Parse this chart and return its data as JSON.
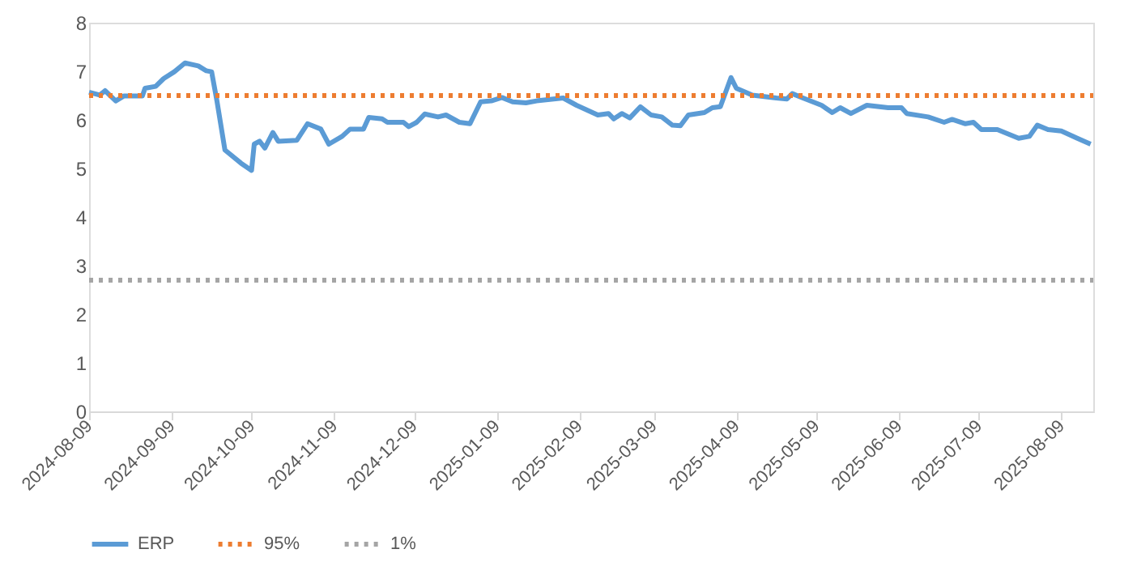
{
  "chart_data": {
    "type": "line",
    "xlim": [
      "2024-08-09",
      "2025-08-21"
    ],
    "xticks": [
      "2024-08-09",
      "2024-09-09",
      "2024-10-09",
      "2024-11-09",
      "2024-12-09",
      "2025-01-09",
      "2025-02-09",
      "2025-03-09",
      "2025-04-09",
      "2025-05-09",
      "2025-06-09",
      "2025-07-09",
      "2025-08-09"
    ],
    "ylim": [
      0,
      8
    ],
    "yticks": [
      0,
      1,
      2,
      3,
      4,
      5,
      6,
      7,
      8
    ],
    "grid": false,
    "legend": "bottom",
    "marker": "none",
    "series": [
      {
        "name": "ERP",
        "color": "#5b9bd5",
        "line_style": "solid",
        "x": [
          "2024-08-09",
          "2024-08-13",
          "2024-08-15",
          "2024-08-19",
          "2024-08-22",
          "2024-08-29",
          "2024-08-30",
          "2024-09-03",
          "2024-09-06",
          "2024-09-10",
          "2024-09-14",
          "2024-09-19",
          "2024-09-22",
          "2024-09-24",
          "2024-09-26",
          "2024-09-29",
          "2024-10-05",
          "2024-10-09",
          "2024-10-10",
          "2024-10-12",
          "2024-10-14",
          "2024-10-17",
          "2024-10-19",
          "2024-10-26",
          "2024-10-30",
          "2024-11-04",
          "2024-11-07",
          "2024-11-12",
          "2024-11-15",
          "2024-11-20",
          "2024-11-22",
          "2024-11-27",
          "2024-11-29",
          "2024-12-05",
          "2024-12-07",
          "2024-12-10",
          "2024-12-13",
          "2024-12-18",
          "2024-12-21",
          "2024-12-26",
          "2024-12-30",
          "2025-01-03",
          "2025-01-07",
          "2025-01-11",
          "2025-01-15",
          "2025-01-20",
          "2025-01-24",
          "2025-02-03",
          "2025-02-08",
          "2025-02-16",
          "2025-02-20",
          "2025-02-22",
          "2025-02-25",
          "2025-02-28",
          "2025-03-04",
          "2025-03-08",
          "2025-03-12",
          "2025-03-16",
          "2025-03-19",
          "2025-03-22",
          "2025-03-28",
          "2025-03-31",
          "2025-04-03",
          "2025-04-07",
          "2025-04-09",
          "2025-04-15",
          "2025-04-24",
          "2025-04-28",
          "2025-04-30",
          "2025-05-04",
          "2025-05-11",
          "2025-05-15",
          "2025-05-18",
          "2025-05-22",
          "2025-05-28",
          "2025-06-05",
          "2025-06-10",
          "2025-06-12",
          "2025-06-20",
          "2025-06-26",
          "2025-06-29",
          "2025-07-04",
          "2025-07-07",
          "2025-07-10",
          "2025-07-16",
          "2025-07-24",
          "2025-07-28",
          "2025-07-31",
          "2025-08-04",
          "2025-08-09",
          "2025-08-15",
          "2025-08-20"
        ],
        "values": [
          6.57,
          6.51,
          6.6,
          6.39,
          6.49,
          6.49,
          6.65,
          6.69,
          6.85,
          6.99,
          7.17,
          7.11,
          7.01,
          6.99,
          6.39,
          5.38,
          5.11,
          4.96,
          5.5,
          5.56,
          5.42,
          5.74,
          5.56,
          5.58,
          5.92,
          5.81,
          5.5,
          5.66,
          5.81,
          5.81,
          6.05,
          6.02,
          5.95,
          5.95,
          5.86,
          5.95,
          6.12,
          6.06,
          6.1,
          5.95,
          5.92,
          6.37,
          6.39,
          6.46,
          6.37,
          6.35,
          6.39,
          6.45,
          6.3,
          6.1,
          6.13,
          6.02,
          6.13,
          6.04,
          6.27,
          6.1,
          6.06,
          5.89,
          5.88,
          6.1,
          6.15,
          6.25,
          6.27,
          6.87,
          6.65,
          6.51,
          6.45,
          6.43,
          6.54,
          6.45,
          6.3,
          6.15,
          6.25,
          6.13,
          6.3,
          6.25,
          6.25,
          6.13,
          6.06,
          5.95,
          6.01,
          5.92,
          5.95,
          5.8,
          5.8,
          5.62,
          5.66,
          5.89,
          5.8,
          5.77,
          5.62,
          5.5
        ]
      },
      {
        "name": "95%",
        "color": "#ed7d31",
        "line_style": "dotted",
        "x": [
          "2024-08-09",
          "2025-08-21"
        ],
        "values": [
          6.5,
          6.5
        ]
      },
      {
        "name": "1%",
        "color": "#a5a5a5",
        "line_style": "dotted",
        "x": [
          "2024-08-09",
          "2025-08-21"
        ],
        "values": [
          2.7,
          2.7
        ]
      }
    ]
  }
}
